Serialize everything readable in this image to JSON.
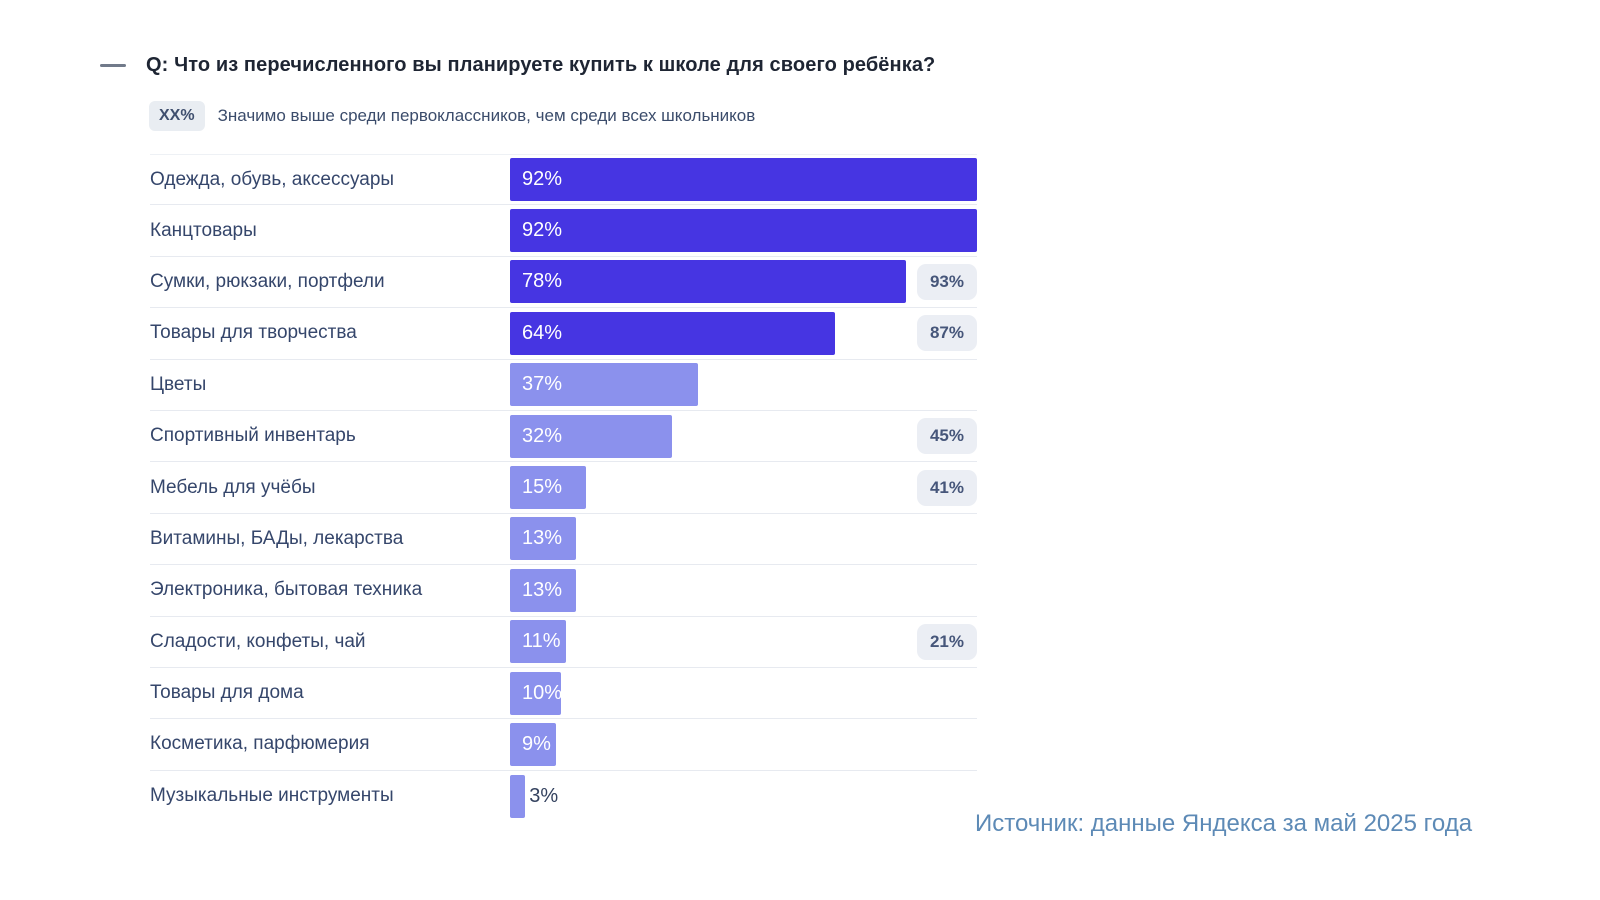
{
  "header": {
    "title": "Q: Что из перечисленного вы планируете купить к школе для своего ребёнка?"
  },
  "legend": {
    "badge_label": "XX%",
    "text": "Значимо выше среди первоклассников, чем среди всех школьников"
  },
  "chart_data": {
    "type": "bar",
    "orientation": "horizontal",
    "title": "Q: Что из перечисленного вы планируете купить к школе для своего ребёнка?",
    "legend_note": "Значимо выше среди первоклассников, чем среди всех школьников",
    "unit": "%",
    "scale_max": 92,
    "categories": [
      "Одежда, обувь, аксессуары",
      "Канцтовары",
      "Сумки, рюкзаки, портфели",
      "Товары для творчества",
      "Цветы",
      "Спортивный инвентарь",
      "Мебель для учёбы",
      "Витамины, БАДы, лекарства",
      "Электроника, бытовая техника",
      "Сладости, конфеты, чай",
      "Товары для дома",
      "Косметика, парфюмерия",
      "Музыкальные инструменты"
    ],
    "values": [
      92,
      92,
      78,
      64,
      37,
      32,
      15,
      13,
      13,
      11,
      10,
      9,
      3
    ],
    "first_grader_values": [
      null,
      null,
      93,
      87,
      null,
      45,
      41,
      null,
      null,
      21,
      null,
      null,
      null
    ],
    "tones": [
      "dark",
      "dark",
      "dark",
      "dark",
      "light",
      "light",
      "light",
      "light",
      "light",
      "light",
      "light",
      "light",
      "light"
    ],
    "colors": {
      "bar_high": "#4635e2",
      "bar_low": "#8b91ed",
      "badge_bg": "#ebeef4",
      "badge_text": "#46567a",
      "label_text": "#35466b",
      "source_text": "#5d8ab6"
    },
    "legend_position": "top-left",
    "grid": false
  },
  "source": {
    "text": "Источник: данные Яндекса за май 2025 года"
  }
}
